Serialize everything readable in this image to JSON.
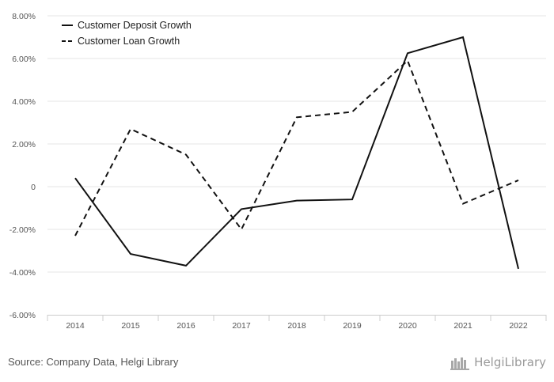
{
  "chart_data": {
    "type": "line",
    "categories": [
      "2014",
      "2015",
      "2016",
      "2017",
      "2018",
      "2019",
      "2020",
      "2021",
      "2022"
    ],
    "series": [
      {
        "name": "Customer Deposit Growth",
        "style": "solid",
        "color": "#111111",
        "values": [
          0.4,
          -3.15,
          -3.7,
          -1.05,
          -0.65,
          -0.6,
          6.25,
          7.0,
          -3.85
        ]
      },
      {
        "name": "Customer Loan Growth",
        "style": "dashed",
        "color": "#111111",
        "values": [
          -2.3,
          2.7,
          1.5,
          -2.0,
          3.25,
          3.5,
          5.9,
          -0.8,
          0.3
        ]
      }
    ],
    "y_ticks": [
      "8.00%",
      "6.00%",
      "4.00%",
      "2.00%",
      "0",
      "-2.00%",
      "-4.00%",
      "-6.00%"
    ],
    "y_tick_values": [
      8,
      6,
      4,
      2,
      0,
      -2,
      -4,
      -6
    ],
    "ylim": [
      -6,
      8
    ],
    "title": "",
    "xlabel": "",
    "ylabel": "",
    "grid": true,
    "legend_position": "top-left"
  },
  "footer": {
    "source": "Source: Company Data, Helgi Library",
    "logo_text": "HelgiLibrary"
  }
}
